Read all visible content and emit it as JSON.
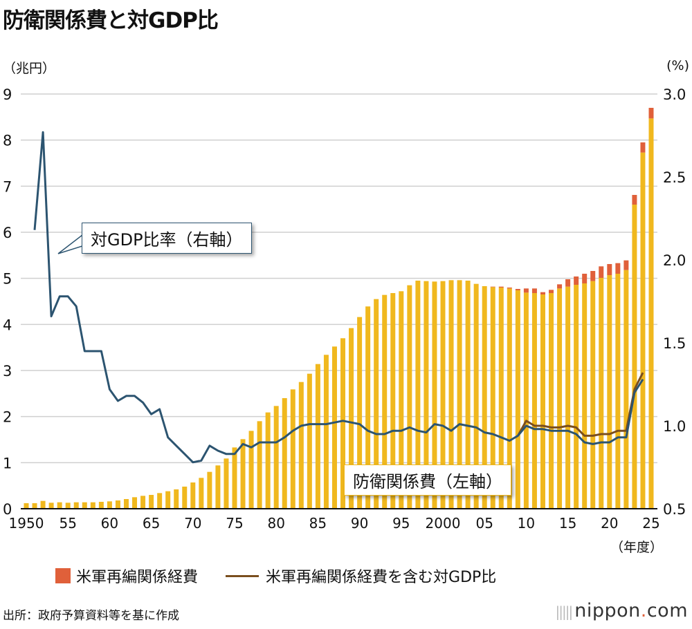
{
  "title": "防衛関係費と対GDP比",
  "source": "出所：政府予算資料等を基に作成",
  "logo": {
    "name": "nippon",
    "dot": ".",
    "suffix": "com"
  },
  "colors": {
    "bar": "#f0b81e",
    "realignment": "#e0603a",
    "ratio": "#2c5470",
    "ratio_incl": "#7a4e1e",
    "grid": "#cfcfcf"
  },
  "chart_data": {
    "type": "bar+line",
    "title": "防衛関係費と対GDP比",
    "ylabel_left": "（兆円）",
    "ylabel_right": "(%)",
    "xlabel": "（年度）",
    "ylim_left": [
      0,
      9
    ],
    "ylim_right": [
      0.5,
      3.0
    ],
    "yticks_left": [
      "0",
      "1",
      "2",
      "3",
      "4",
      "5",
      "6",
      "7",
      "8",
      "9"
    ],
    "yticks_right": [
      "0.5",
      "1.0",
      "1.5",
      "2.0",
      "2.5",
      "3.0"
    ],
    "xticks": [
      {
        "year": 1950,
        "label": "1950"
      },
      {
        "year": 1955,
        "label": "55"
      },
      {
        "year": 1960,
        "label": "60"
      },
      {
        "year": 1965,
        "label": "65"
      },
      {
        "year": 1970,
        "label": "70"
      },
      {
        "year": 1975,
        "label": "75"
      },
      {
        "year": 1980,
        "label": "80"
      },
      {
        "year": 1985,
        "label": "85"
      },
      {
        "year": 1990,
        "label": "90"
      },
      {
        "year": 1995,
        "label": "95"
      },
      {
        "year": 2000,
        "label": "2000"
      },
      {
        "year": 2005,
        "label": "05"
      },
      {
        "year": 2010,
        "label": "10"
      },
      {
        "year": 2015,
        "label": "15"
      },
      {
        "year": 2020,
        "label": "20"
      },
      {
        "year": 2025,
        "label": "25"
      }
    ],
    "grid": true,
    "years_start": 1950,
    "defense_budget": [
      0.12,
      0.12,
      0.17,
      0.13,
      0.14,
      0.13,
      0.14,
      0.14,
      0.14,
      0.15,
      0.16,
      0.18,
      0.21,
      0.25,
      0.28,
      0.3,
      0.34,
      0.38,
      0.42,
      0.48,
      0.57,
      0.67,
      0.8,
      0.94,
      1.09,
      1.33,
      1.51,
      1.69,
      1.9,
      2.09,
      2.23,
      2.4,
      2.59,
      2.75,
      2.93,
      3.14,
      3.34,
      3.52,
      3.7,
      3.92,
      4.16,
      4.39,
      4.55,
      4.64,
      4.68,
      4.72,
      4.85,
      4.95,
      4.94,
      4.93,
      4.94,
      4.96,
      4.96,
      4.95,
      4.88,
      4.83,
      4.81,
      4.8,
      4.78,
      4.74,
      4.69,
      4.68,
      4.65,
      4.68,
      4.78,
      4.82,
      4.86,
      4.89,
      4.94,
      5.01,
      5.07,
      5.1,
      5.18,
      6.6,
      7.73,
      8.47
    ],
    "realignment_cost": [
      0,
      0,
      0,
      0,
      0,
      0,
      0,
      0,
      0,
      0,
      0,
      0,
      0,
      0,
      0,
      0,
      0,
      0,
      0,
      0,
      0,
      0,
      0,
      0,
      0,
      0,
      0,
      0,
      0,
      0,
      0,
      0,
      0,
      0,
      0,
      0,
      0,
      0,
      0,
      0,
      0,
      0,
      0,
      0,
      0,
      0,
      0,
      0,
      0,
      0,
      0,
      0,
      0,
      0,
      0,
      0,
      0.01,
      0.02,
      0.02,
      0.03,
      0.09,
      0.1,
      0.05,
      0.07,
      0.09,
      0.16,
      0.18,
      0.21,
      0.22,
      0.25,
      0.24,
      0.23,
      0.21,
      0.21,
      0.22,
      0.23
    ],
    "ratio_start": 1951,
    "gdp_ratio": [
      2.18,
      2.77,
      1.66,
      1.78,
      1.78,
      1.72,
      1.45,
      1.45,
      1.45,
      1.22,
      1.15,
      1.18,
      1.18,
      1.14,
      1.07,
      1.1,
      0.93,
      0.88,
      0.83,
      0.78,
      0.79,
      0.88,
      0.85,
      0.83,
      0.83,
      0.89,
      0.87,
      0.9,
      0.9,
      0.9,
      0.93,
      0.97,
      1.0,
      1.01,
      1.01,
      1.01,
      1.02,
      1.03,
      1.02,
      1.01,
      0.97,
      0.95,
      0.95,
      0.97,
      0.97,
      0.99,
      0.97,
      0.96,
      1.01,
      1.0,
      0.97,
      1.01,
      1.0,
      0.99,
      0.96,
      0.95,
      0.93,
      0.91,
      0.94,
      1.0,
      0.98,
      0.98,
      0.97,
      0.97,
      0.97,
      0.95,
      0.9,
      0.89,
      0.9,
      0.9,
      0.93,
      0.93,
      1.2,
      1.28
    ],
    "ratio_incl_start": 2009,
    "gdp_ratio_incl": [
      0.94,
      1.03,
      1.0,
      1.0,
      0.99,
      0.99,
      1.0,
      0.99,
      0.94,
      0.94,
      0.95,
      0.95,
      0.97,
      0.97,
      1.22,
      1.32
    ],
    "annotations": [
      "対GDP比率（右軸）",
      "防衛関係費（左軸）"
    ],
    "legend": [
      "米軍再編関係経費",
      "米軍再編関係経費を含む対GDP比"
    ],
    "legend_position": "bottom"
  }
}
